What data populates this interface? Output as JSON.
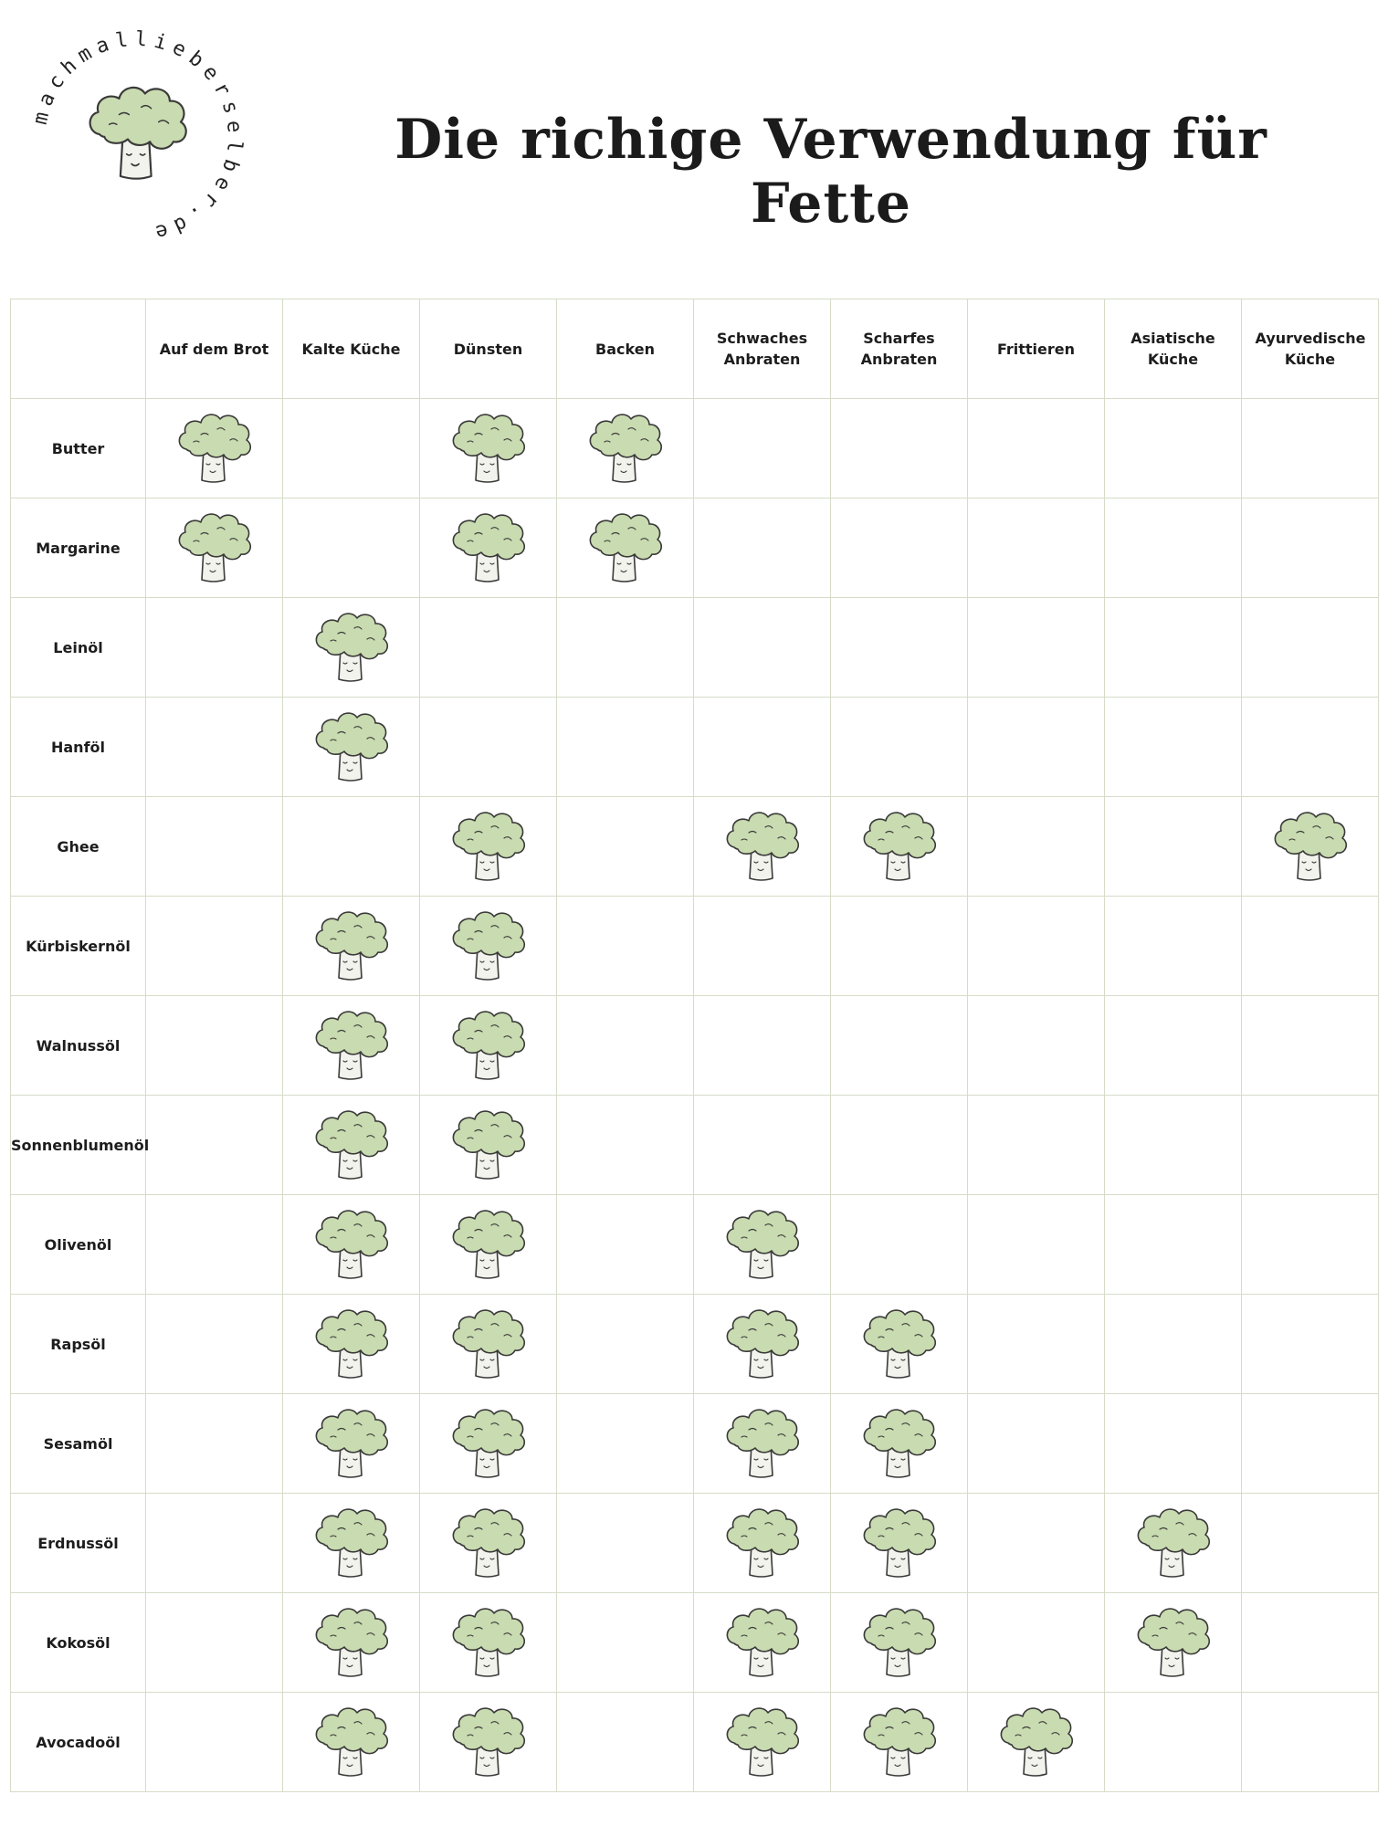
{
  "logo": {
    "ring_text": "machmallieberselber.de",
    "icon": "broccoli-icon"
  },
  "title": "Die richige Verwendung für Fette",
  "table": {
    "corner": "",
    "columns": [
      "Auf dem Brot",
      "Kalte Küche",
      "Dünsten",
      "Backen",
      "Schwaches Anbraten",
      "Scharfes Anbraten",
      "Frittieren",
      "Asiatische Küche",
      "Ayurvedische Küche"
    ],
    "rows": [
      {
        "fat": "Butter",
        "uses": [
          true,
          false,
          true,
          true,
          false,
          false,
          false,
          false,
          false
        ]
      },
      {
        "fat": "Margarine",
        "uses": [
          true,
          false,
          true,
          true,
          false,
          false,
          false,
          false,
          false
        ]
      },
      {
        "fat": "Leinöl",
        "uses": [
          false,
          true,
          false,
          false,
          false,
          false,
          false,
          false,
          false
        ]
      },
      {
        "fat": "Hanföl",
        "uses": [
          false,
          true,
          false,
          false,
          false,
          false,
          false,
          false,
          false
        ]
      },
      {
        "fat": "Ghee",
        "uses": [
          false,
          false,
          true,
          false,
          true,
          true,
          false,
          false,
          true
        ]
      },
      {
        "fat": "Kürbiskernöl",
        "uses": [
          false,
          true,
          true,
          false,
          false,
          false,
          false,
          false,
          false
        ]
      },
      {
        "fat": "Walnussöl",
        "uses": [
          false,
          true,
          true,
          false,
          false,
          false,
          false,
          false,
          false
        ]
      },
      {
        "fat": "Sonnenblumenöl",
        "uses": [
          false,
          true,
          true,
          false,
          false,
          false,
          false,
          false,
          false
        ]
      },
      {
        "fat": "Olivenöl",
        "uses": [
          false,
          true,
          true,
          false,
          true,
          false,
          false,
          false,
          false
        ]
      },
      {
        "fat": "Rapsöl",
        "uses": [
          false,
          true,
          true,
          false,
          true,
          true,
          false,
          false,
          false
        ]
      },
      {
        "fat": "Sesamöl",
        "uses": [
          false,
          true,
          true,
          false,
          true,
          true,
          false,
          false,
          false
        ]
      },
      {
        "fat": "Erdnussöl",
        "uses": [
          false,
          true,
          true,
          false,
          true,
          true,
          false,
          true,
          false
        ]
      },
      {
        "fat": "Kokosöl",
        "uses": [
          false,
          true,
          true,
          false,
          true,
          true,
          false,
          true,
          false
        ]
      },
      {
        "fat": "Avocadoöl",
        "uses": [
          false,
          true,
          true,
          false,
          true,
          true,
          true,
          false,
          false
        ]
      }
    ]
  },
  "colors": {
    "broccoli_head": "#c9dbb0",
    "broccoli_stem": "#f1f3ec",
    "outline": "#3a3a3a",
    "grid_line": "#d6dcc8"
  }
}
